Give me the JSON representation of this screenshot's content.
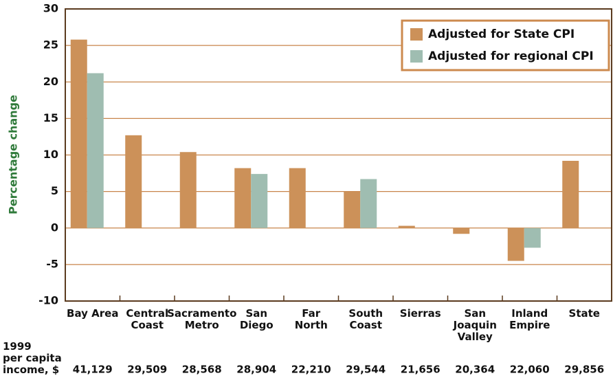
{
  "chart_data": {
    "type": "bar",
    "ylabel": "Percentage change",
    "categories": [
      "Bay Area",
      "Central\nCoast",
      "Sacramento\nMetro",
      "San\nDiego",
      "Far\nNorth",
      "South\nCoast",
      "Sierras",
      "San\nJoaquin\nValley",
      "Inland\nEmpire",
      "State"
    ],
    "series": [
      {
        "name": "Adjusted for State CPI",
        "color": "#cc9159",
        "values": [
          25.8,
          12.7,
          10.4,
          8.2,
          8.2,
          5.0,
          0.3,
          -0.8,
          -4.5,
          9.2
        ]
      },
      {
        "name": "Adjusted for regional CPI",
        "color": "#9fbdb1",
        "values": [
          21.2,
          null,
          null,
          7.4,
          null,
          6.7,
          null,
          null,
          -2.7,
          null
        ]
      }
    ],
    "ylim": [
      -10,
      30
    ],
    "yticks": [
      -10,
      -5,
      0,
      5,
      10,
      15,
      20,
      25,
      30
    ],
    "grid": true,
    "legend": "top-right",
    "income_label": "1999\nper capita\nincome, $",
    "income": [
      "41,129",
      "29,509",
      "28,568",
      "28,904",
      "22,210",
      "29,544",
      "21,656",
      "20,364",
      "22,060",
      "29,856"
    ]
  }
}
